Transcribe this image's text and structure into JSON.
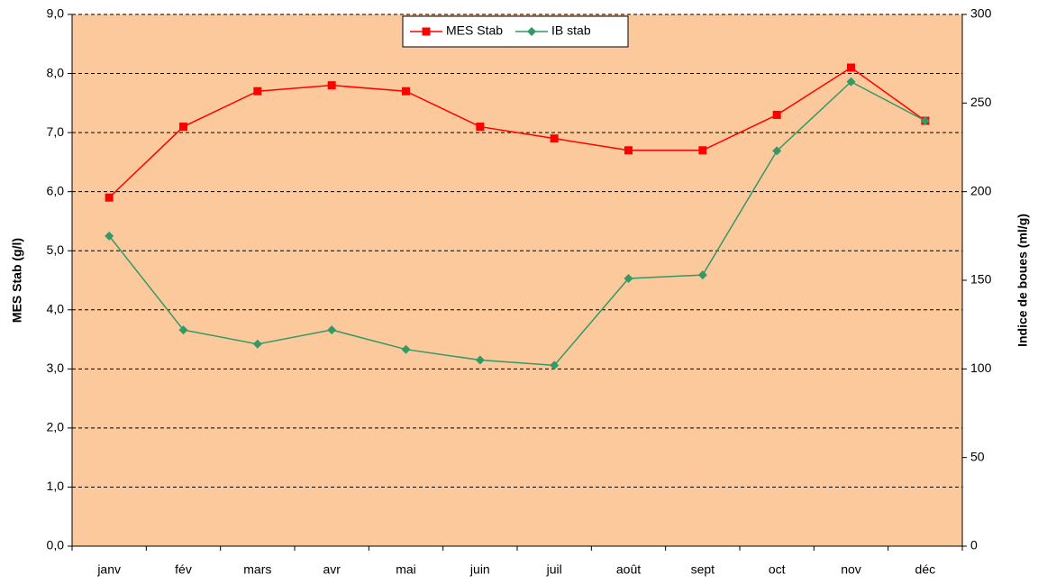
{
  "chart_data": {
    "type": "line",
    "y_label": "MES Stab (g/l)",
    "y2_label": "Indice de boues (ml/g)",
    "categories": [
      "janv",
      "fév",
      "mars",
      "avr",
      "mai",
      "juin",
      "juil",
      "août",
      "sept",
      "oct",
      "nov",
      "déc"
    ],
    "series": [
      {
        "name": "MES Stab",
        "color": "#ff0000",
        "marker": "square",
        "values": [
          5.9,
          7.1,
          7.7,
          7.8,
          7.7,
          7.1,
          6.9,
          6.7,
          6.7,
          7.3,
          8.1,
          7.2
        ]
      },
      {
        "name": "IB stab",
        "color": "#339966",
        "marker": "diamond",
        "axis": "y2",
        "values": [
          175,
          122,
          114,
          122,
          111,
          105,
          102,
          151,
          153,
          223,
          262,
          240
        ]
      }
    ],
    "ylim": [
      0,
      9
    ],
    "yticks": [
      {
        "value": 0,
        "label": "0,0"
      },
      {
        "value": 1,
        "label": "1,0"
      },
      {
        "value": 2,
        "label": "2,0"
      },
      {
        "value": 3,
        "label": "3,0"
      },
      {
        "value": 4,
        "label": "4,0"
      },
      {
        "value": 5,
        "label": "5,0"
      },
      {
        "value": 6,
        "label": "6,0"
      },
      {
        "value": 7,
        "label": "7,0"
      },
      {
        "value": 8,
        "label": "8,0"
      },
      {
        "value": 9,
        "label": "9,0"
      }
    ],
    "y2lim": [
      0,
      300
    ],
    "y2ticks": [
      0,
      50,
      100,
      150,
      200,
      250,
      300
    ],
    "grid": true,
    "legend": "top",
    "background": "#fbc99b"
  }
}
